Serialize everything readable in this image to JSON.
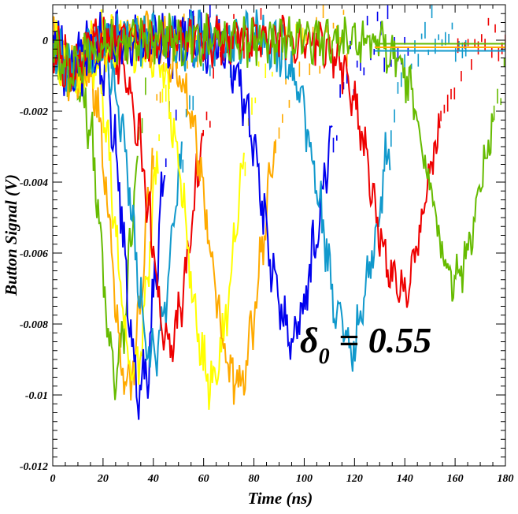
{
  "chart_data": {
    "type": "line",
    "title": "",
    "xlabel": "Time (ns)",
    "ylabel": "Button Signal (V)",
    "xlim": [
      0,
      180
    ],
    "ylim": [
      -0.012,
      0.001
    ],
    "x_ticks": [
      0,
      20,
      40,
      60,
      80,
      100,
      120,
      140,
      160,
      180
    ],
    "x_tick_labels": [
      "0",
      "20",
      "40",
      "60",
      "80",
      "100",
      "120",
      "140",
      "160",
      "180"
    ],
    "y_ticks": [
      0,
      -0.002,
      -0.004,
      -0.006,
      -0.008,
      -0.01,
      -0.012
    ],
    "y_tick_labels": [
      "0",
      "-0.002",
      "-0.004",
      "-0.006",
      "-0.008",
      "-0.01",
      "-0.012"
    ],
    "grid": false,
    "annotation": {
      "text": "δ",
      "subscript": "0",
      "suffix": " = 0.55"
    },
    "series": [
      {
        "color": "#66bb00",
        "min_x": 25,
        "min_y": -0.0094,
        "width": 10,
        "noise": 0.00065
      },
      {
        "color": "#ffaa00",
        "min_x": 30,
        "min_y": -0.0097,
        "width": 11,
        "noise": 0.0006
      },
      {
        "color": "#ffff00",
        "min_x": 32,
        "min_y": -0.0095,
        "width": 11,
        "noise": 0.0006
      },
      {
        "color": "#0000ee",
        "min_x": 35,
        "min_y": -0.0099,
        "width": 11,
        "noise": 0.0007
      },
      {
        "color": "#1199cc",
        "min_x": 40,
        "min_y": -0.009,
        "width": 13,
        "noise": 0.0006
      },
      {
        "color": "#ee0000",
        "min_x": 47,
        "min_y": -0.0085,
        "width": 14,
        "noise": 0.0006
      },
      {
        "color": "#ffff00",
        "min_x": 63,
        "min_y": -0.0096,
        "width": 15,
        "noise": 0.0006
      },
      {
        "color": "#ffaa00",
        "min_x": 73,
        "min_y": -0.0097,
        "width": 17,
        "noise": 0.0006
      },
      {
        "color": "#0000ee",
        "min_x": 95,
        "min_y": -0.0082,
        "width": 18,
        "noise": 0.0006
      },
      {
        "color": "#1199cc",
        "min_x": 118,
        "min_y": -0.0085,
        "width": 18,
        "noise": 0.0006
      },
      {
        "color": "#ee0000",
        "min_x": 138,
        "min_y": -0.007,
        "width": 18,
        "noise": 0.0005
      },
      {
        "color": "#66bb00",
        "min_x": 160,
        "min_y": -0.0067,
        "width": 17,
        "noise": 0.0005
      }
    ]
  }
}
